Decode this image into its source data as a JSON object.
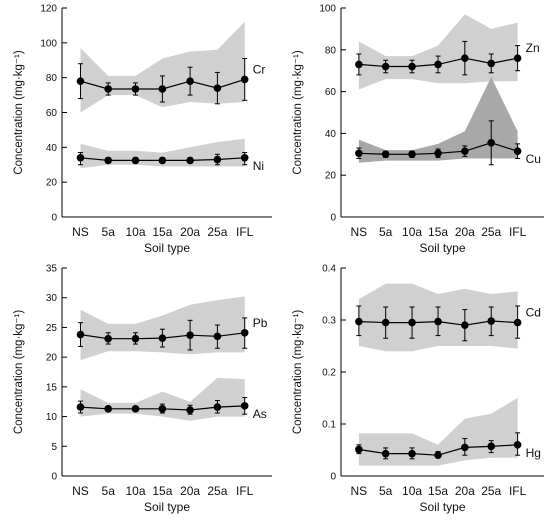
{
  "chart_data": [
    {
      "type": "line",
      "ylabel": "Concentration (mg·kg⁻¹)",
      "xlabel": "Soil type",
      "categories": [
        "NS",
        "5a",
        "10a",
        "15a",
        "20a",
        "25a",
        "IFL"
      ],
      "ylim": [
        0,
        120
      ],
      "yticks": [
        "0",
        "20",
        "40",
        "60",
        "80",
        "100",
        "120"
      ],
      "series": [
        {
          "name": "Cr",
          "mean": [
            78,
            73.5,
            73.5,
            73.5,
            78,
            74,
            79
          ],
          "err_low": [
            68,
            70,
            70,
            66,
            70,
            65,
            67
          ],
          "err_high": [
            88,
            77,
            77,
            81,
            86,
            83,
            91
          ],
          "range_low": [
            60,
            70,
            70,
            63,
            66,
            65,
            66
          ],
          "range_high": [
            97,
            81,
            81,
            91,
            95,
            96,
            112
          ],
          "shade": "#d0d0d0"
        },
        {
          "name": "Ni",
          "mean": [
            34,
            32.5,
            32.5,
            32.5,
            32.5,
            33,
            34
          ],
          "err_low": [
            30,
            31,
            31,
            31,
            31,
            30,
            30
          ],
          "err_high": [
            37,
            34,
            34,
            34,
            34,
            36,
            37
          ],
          "range_low": [
            28,
            30,
            30,
            29,
            29,
            29,
            29
          ],
          "range_high": [
            42,
            38,
            38,
            37,
            40,
            43,
            45
          ],
          "shade": "#d0d0d0"
        }
      ]
    },
    {
      "type": "line",
      "ylabel": "Concentration (mg·kg⁻¹)",
      "xlabel": "Soil type",
      "categories": [
        "NS",
        "5a",
        "10a",
        "15a",
        "20a",
        "25a",
        "IFL"
      ],
      "ylim": [
        0,
        100
      ],
      "yticks": [
        "0",
        "20",
        "40",
        "60",
        "80",
        "100"
      ],
      "series": [
        {
          "name": "Zn",
          "mean": [
            73,
            72,
            72,
            73,
            76,
            73.5,
            76
          ],
          "err_low": [
            68,
            69,
            69,
            69,
            68,
            69,
            70
          ],
          "err_high": [
            78,
            75,
            75,
            77,
            84,
            78,
            82
          ],
          "range_low": [
            61,
            66,
            66,
            64,
            64,
            65,
            65
          ],
          "range_high": [
            84,
            77,
            77,
            82,
            97,
            90,
            93
          ],
          "shade": "#d0d0d0"
        },
        {
          "name": "Cu",
          "mean": [
            30.5,
            30,
            30,
            30.5,
            31.5,
            35.5,
            31.5
          ],
          "err_low": [
            28,
            28.5,
            28.5,
            28.5,
            29,
            25,
            28
          ],
          "err_high": [
            33,
            31.5,
            31.5,
            32.5,
            34,
            46,
            35
          ],
          "range_low": [
            26,
            27,
            27,
            27,
            28,
            28,
            28
          ],
          "range_high": [
            37,
            32,
            32,
            35,
            41,
            67,
            41
          ],
          "shade": "#a8a8a8"
        }
      ]
    },
    {
      "type": "line",
      "ylabel": "Concentration (mg·kg⁻¹)",
      "xlabel": "Soil type",
      "categories": [
        "NS",
        "5a",
        "10a",
        "15a",
        "20a",
        "25a",
        "IFL"
      ],
      "ylim": [
        0,
        35
      ],
      "yticks": [
        "0",
        "5",
        "10",
        "15",
        "20",
        "25",
        "30",
        "35"
      ],
      "series": [
        {
          "name": "Pb",
          "mean": [
            23.8,
            23.1,
            23.1,
            23.2,
            23.7,
            23.5,
            24.1
          ],
          "err_low": [
            21.8,
            22.2,
            22.2,
            21.7,
            21.2,
            21.5,
            21.5
          ],
          "err_high": [
            25.8,
            24.1,
            24.1,
            24.7,
            26.2,
            25.4,
            26.6
          ],
          "range_low": [
            19.5,
            21,
            21,
            20.8,
            20.5,
            20.8,
            20.8
          ],
          "range_high": [
            28,
            25.6,
            25.6,
            27,
            28.8,
            29.6,
            30.2
          ],
          "shade": "#d0d0d0"
        },
        {
          "name": "As",
          "mean": [
            11.6,
            11.3,
            11.3,
            11.3,
            11.1,
            11.6,
            11.8
          ],
          "err_low": [
            10.6,
            10.9,
            10.9,
            10.6,
            10.4,
            10.6,
            10.4
          ],
          "err_high": [
            12.6,
            11.7,
            11.7,
            12.1,
            11.9,
            12.7,
            13.2
          ],
          "range_low": [
            10,
            10.5,
            10.5,
            10,
            9.3,
            10,
            10
          ],
          "range_high": [
            14.6,
            12.3,
            12.3,
            14.2,
            12.5,
            16.5,
            16.3
          ],
          "shade": "#d0d0d0"
        }
      ]
    },
    {
      "type": "line",
      "ylabel": "Concentration (mg·kg⁻¹)",
      "xlabel": "Soil type",
      "categories": [
        "NS",
        "5a",
        "10a",
        "15a",
        "20a",
        "25a",
        "IFL"
      ],
      "ylim": [
        0,
        0.4
      ],
      "yticks": [
        "0",
        "0.1",
        "0.2",
        "0.3",
        "0.4"
      ],
      "series": [
        {
          "name": "Cd",
          "mean": [
            0.297,
            0.295,
            0.295,
            0.297,
            0.29,
            0.298,
            0.295
          ],
          "err_low": [
            0.27,
            0.265,
            0.265,
            0.27,
            0.26,
            0.27,
            0.265
          ],
          "err_high": [
            0.327,
            0.325,
            0.325,
            0.325,
            0.32,
            0.325,
            0.327
          ],
          "range_low": [
            0.25,
            0.24,
            0.24,
            0.25,
            0.25,
            0.25,
            0.245
          ],
          "range_high": [
            0.34,
            0.37,
            0.37,
            0.35,
            0.36,
            0.35,
            0.355
          ],
          "shade": "#d0d0d0"
        },
        {
          "name": "Hg",
          "mean": [
            0.051,
            0.043,
            0.043,
            0.04,
            0.055,
            0.057,
            0.06
          ],
          "err_low": [
            0.043,
            0.033,
            0.033,
            0.035,
            0.04,
            0.045,
            0.04
          ],
          "err_high": [
            0.06,
            0.054,
            0.054,
            0.047,
            0.072,
            0.068,
            0.083
          ],
          "range_low": [
            0.02,
            0.02,
            0.02,
            0.02,
            0.03,
            0.035,
            0.035
          ],
          "range_high": [
            0.082,
            0.082,
            0.082,
            0.06,
            0.11,
            0.12,
            0.15
          ],
          "shade": "#d0d0d0"
        }
      ]
    }
  ]
}
